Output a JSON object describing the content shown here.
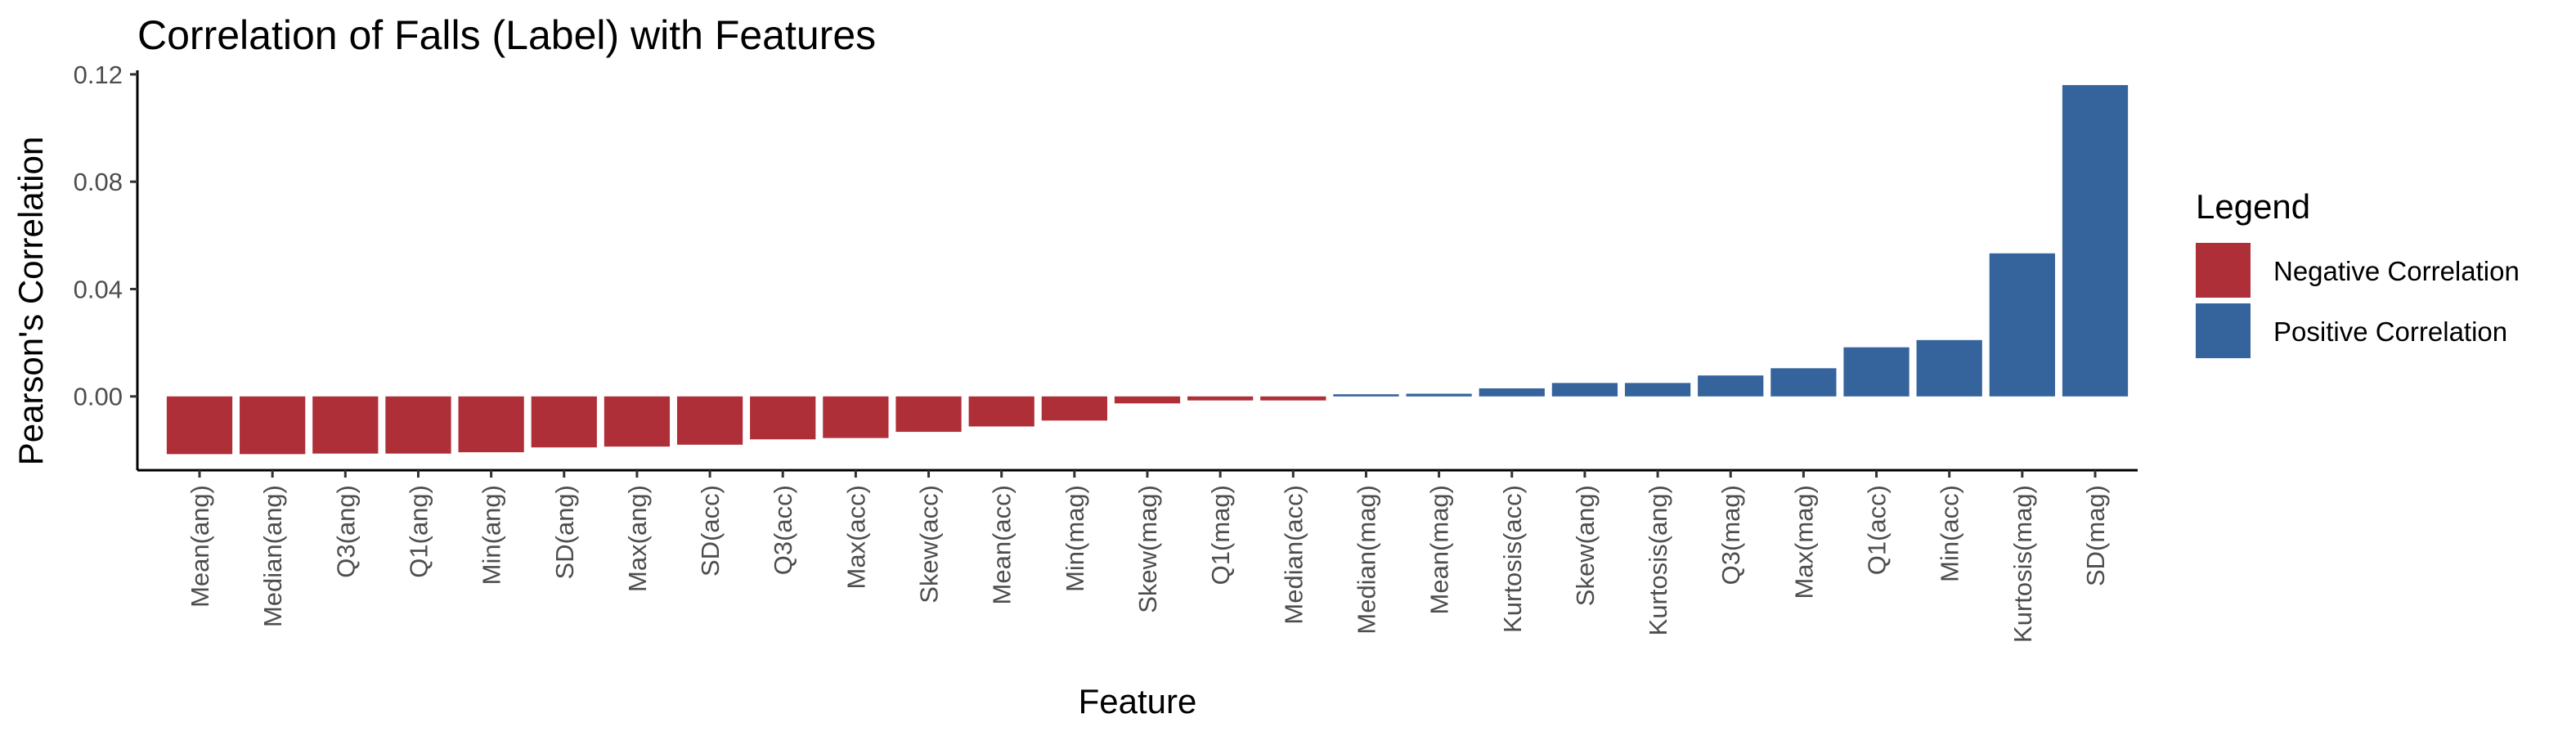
{
  "chart_data": {
    "type": "bar",
    "title": "Correlation of Falls (Label) with Features",
    "xlabel": "Feature",
    "ylabel": "Pearson's Correlation",
    "ylim": [
      -0.0275,
      0.1215
    ],
    "yticks": [
      0.0,
      0.04,
      0.08,
      0.12
    ],
    "ytick_labels": [
      "0.00",
      "0.04",
      "0.08",
      "0.12"
    ],
    "grid": false,
    "legend": {
      "title": "Legend",
      "position": "right",
      "entries": [
        {
          "label": "Negative Correlation",
          "color": "#AE2F38"
        },
        {
          "label": "Positive Correlation",
          "color": "#35649C"
        }
      ]
    },
    "categories": [
      "Mean(ang)",
      "Median(ang)",
      "Q3(ang)",
      "Q1(ang)",
      "Min(ang)",
      "SD(ang)",
      "Max(ang)",
      "SD(acc)",
      "Q3(acc)",
      "Max(acc)",
      "Skew(acc)",
      "Mean(acc)",
      "Min(mag)",
      "Skew(mag)",
      "Q1(mag)",
      "Median(acc)",
      "Median(mag)",
      "Mean(mag)",
      "Kurtosis(acc)",
      "Skew(ang)",
      "Kurtosis(ang)",
      "Q3(mag)",
      "Max(mag)",
      "Q1(acc)",
      "Min(acc)",
      "Kurtosis(mag)",
      "SD(mag)"
    ],
    "values": [
      -0.0215,
      -0.0215,
      -0.0213,
      -0.0213,
      -0.0208,
      -0.019,
      -0.0187,
      -0.018,
      -0.016,
      -0.0155,
      -0.0132,
      -0.0112,
      -0.009,
      -0.0026,
      -0.0015,
      -0.0015,
      0.0008,
      0.001,
      0.003,
      0.005,
      0.005,
      0.0078,
      0.0105,
      0.0183,
      0.021,
      0.0533,
      0.116
    ],
    "colors": {
      "negative": "#AE2F38",
      "positive": "#35649C"
    }
  }
}
